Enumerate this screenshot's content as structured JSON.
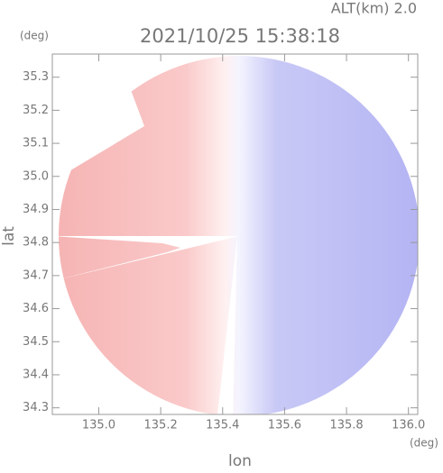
{
  "chart_data": {
    "type": "radar-map",
    "title": "2021/10/25 15:38:18",
    "subtitle": "ALT(km) 2.0",
    "x_label": "lon",
    "y_label": "lat",
    "x_unit": "(deg)",
    "y_unit": "(deg)",
    "xlim": [
      134.85,
      136.03
    ],
    "ylim": [
      34.28,
      35.37
    ],
    "xticks": [
      {
        "value": 135,
        "label": "135.0"
      },
      135.2,
      135.4,
      135.6,
      135.8,
      {
        "value": 136,
        "label": "136.0"
      }
    ],
    "yticks": [
      34.3,
      34.4,
      34.5,
      34.6,
      34.7,
      34.8,
      34.9,
      {
        "value": 35,
        "label": "35.0"
      },
      35.1,
      35.2,
      35.3
    ],
    "frame_color": "#999999"
  }
}
